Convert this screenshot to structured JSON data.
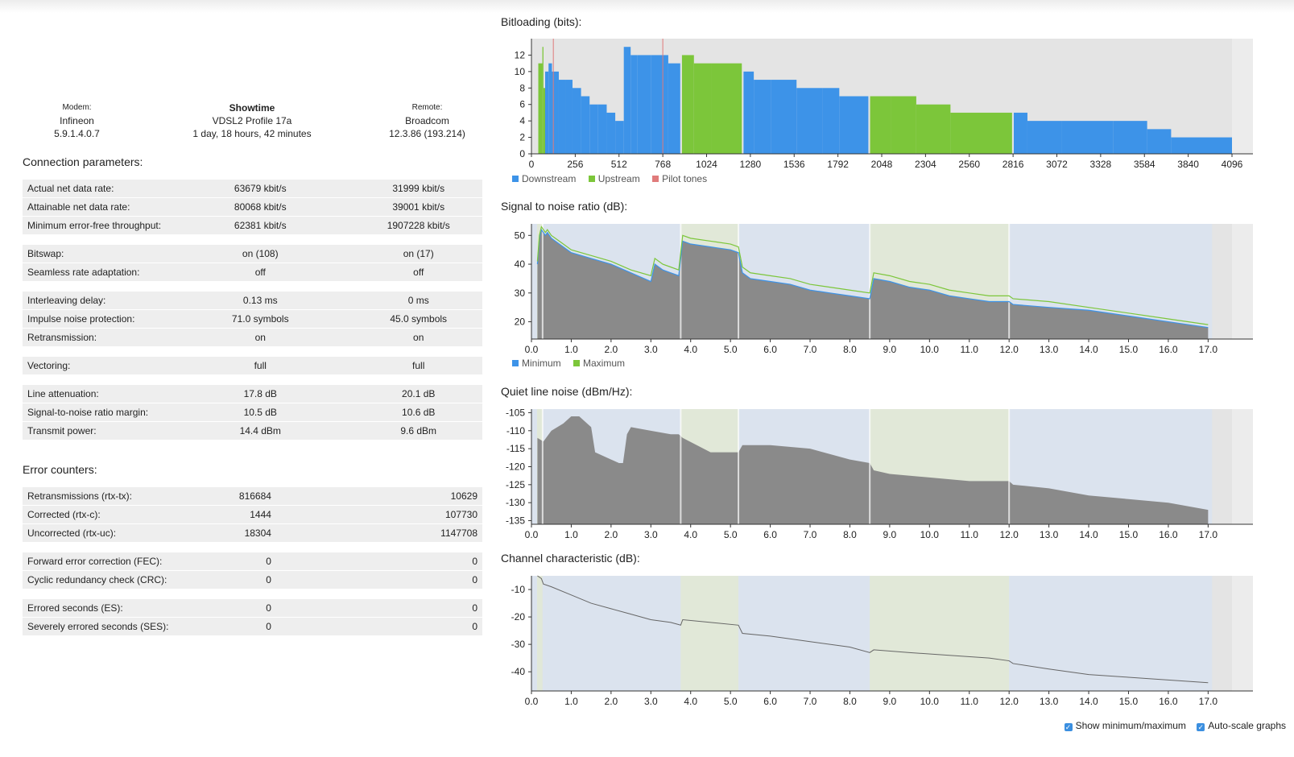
{
  "header": {
    "modem_label": "Modem:",
    "modem_vendor": "Infineon",
    "modem_version": "5.9.1.4.0.7",
    "status": "Showtime",
    "profile": "VDSL2 Profile 17a",
    "uptime": "1 day, 18 hours, 42 minutes",
    "remote_label": "Remote:",
    "remote_vendor": "Broadcom",
    "remote_version": "12.3.86 (193.214)"
  },
  "connection": {
    "title": "Connection parameters:",
    "groups": [
      [
        {
          "label": "Actual net data rate:",
          "down": "63679 kbit/s",
          "up": "31999 kbit/s"
        },
        {
          "label": "Attainable net data rate:",
          "down": "80068 kbit/s",
          "up": "39001 kbit/s"
        },
        {
          "label": "Minimum error-free throughput:",
          "down": "62381 kbit/s",
          "up": "1907228 kbit/s"
        }
      ],
      [
        {
          "label": "Bitswap:",
          "down": "on (108)",
          "up": "on (17)"
        },
        {
          "label": "Seamless rate adaptation:",
          "down": "off",
          "up": "off"
        }
      ],
      [
        {
          "label": "Interleaving delay:",
          "down": "0.13 ms",
          "up": "0 ms"
        },
        {
          "label": "Impulse noise protection:",
          "down": "71.0 symbols",
          "up": "45.0 symbols"
        },
        {
          "label": "Retransmission:",
          "down": "on",
          "up": "on"
        }
      ],
      [
        {
          "label": "Vectoring:",
          "down": "full",
          "up": "full"
        }
      ],
      [
        {
          "label": "Line attenuation:",
          "down": "17.8 dB",
          "up": "20.1 dB"
        },
        {
          "label": "Signal-to-noise ratio margin:",
          "down": "10.5 dB",
          "up": "10.6 dB"
        },
        {
          "label": "Transmit power:",
          "down": "14.4 dBm",
          "up": "9.6 dBm"
        }
      ]
    ]
  },
  "errors": {
    "title": "Error counters:",
    "groups": [
      [
        {
          "label": "Retransmissions (rtx-tx):",
          "down": "816684",
          "up": "10629"
        },
        {
          "label": "Corrected (rtx-c):",
          "down": "1444",
          "up": "107730"
        },
        {
          "label": "Uncorrected (rtx-uc):",
          "down": "18304",
          "up": "1147708"
        }
      ],
      [
        {
          "label": "Forward error correction (FEC):",
          "down": "0",
          "up": "0"
        },
        {
          "label": "Cyclic redundancy check (CRC):",
          "down": "0",
          "up": "0"
        }
      ],
      [
        {
          "label": "Errored seconds (ES):",
          "down": "0",
          "up": "0"
        },
        {
          "label": "Severely errored seconds (SES):",
          "down": "0",
          "up": "0"
        }
      ]
    ]
  },
  "colors": {
    "downstream": "#3d93e8",
    "upstream": "#7cc63a",
    "pilot": "#e07b7b",
    "gray_fill": "#8a8a8a",
    "bg_down": "#dbe3ee",
    "bg_up": "#e1e8d8"
  },
  "options": {
    "show_minmax": "Show minimum/maximum",
    "autoscale": "Auto-scale graphs"
  },
  "chart_data": [
    {
      "id": "bitloading",
      "type": "bar",
      "title": "Bitloading (bits):",
      "xlim": [
        0,
        4096
      ],
      "ylim": [
        0,
        14
      ],
      "x_ticks": [
        "0",
        "256",
        "512",
        "768",
        "1024",
        "1280",
        "1536",
        "1792",
        "2048",
        "2304",
        "2560",
        "2816",
        "3072",
        "3328",
        "3584",
        "3840",
        "4096"
      ],
      "y_ticks": [
        "0",
        "2",
        "4",
        "6",
        "8",
        "10",
        "12"
      ],
      "legend": [
        "Downstream",
        "Upstream",
        "Pilot tones"
      ],
      "pilot_tones": [
        128,
        768
      ],
      "series": [
        {
          "name": "Upstream",
          "segments": [
            [
              40,
              64,
              11
            ],
            [
              64,
              70,
              13
            ],
            [
              70,
              80,
              8
            ]
          ]
        },
        {
          "name": "Downstream",
          "segments": [
            [
              80,
              100,
              10
            ],
            [
              100,
              120,
              11
            ],
            [
              120,
              160,
              10
            ],
            [
              160,
              200,
              9
            ],
            [
              200,
              240,
              9
            ],
            [
              240,
              290,
              8
            ],
            [
              290,
              340,
              7
            ],
            [
              340,
              390,
              6
            ],
            [
              390,
              440,
              6
            ],
            [
              440,
              490,
              5
            ],
            [
              490,
              540,
              4
            ],
            [
              540,
              580,
              13
            ],
            [
              580,
              620,
              12
            ],
            [
              620,
              700,
              12
            ],
            [
              700,
              800,
              12
            ],
            [
              800,
              870,
              11
            ]
          ]
        },
        {
          "name": "Upstream",
          "segments": [
            [
              880,
              950,
              12
            ],
            [
              950,
              1050,
              11
            ],
            [
              1050,
              1230,
              11
            ]
          ]
        },
        {
          "name": "Downstream",
          "segments": [
            [
              1240,
              1300,
              10
            ],
            [
              1300,
              1400,
              9
            ],
            [
              1400,
              1550,
              9
            ],
            [
              1550,
              1700,
              8
            ],
            [
              1700,
              1800,
              8
            ],
            [
              1800,
              1970,
              7
            ]
          ]
        },
        {
          "name": "Upstream",
          "segments": [
            [
              1980,
              2100,
              7
            ],
            [
              2100,
              2250,
              7
            ],
            [
              2250,
              2450,
              6
            ],
            [
              2450,
              2810,
              5
            ]
          ]
        },
        {
          "name": "Downstream",
          "segments": [
            [
              2820,
              2900,
              5
            ],
            [
              2900,
              3100,
              4
            ],
            [
              3100,
              3400,
              4
            ],
            [
              3400,
              3600,
              4
            ],
            [
              3600,
              3740,
              3
            ],
            [
              3740,
              4096,
              2
            ]
          ]
        }
      ]
    },
    {
      "id": "snr",
      "type": "area",
      "title": "Signal to noise ratio (dB):",
      "xlim": [
        0,
        17.6
      ],
      "ylim": [
        14,
        54
      ],
      "x_ticks": [
        "0.0",
        "1.0",
        "2.0",
        "3.0",
        "4.0",
        "5.0",
        "6.0",
        "7.0",
        "8.0",
        "9.0",
        "10.0",
        "11.0",
        "12.0",
        "13.0",
        "14.0",
        "15.0",
        "16.0",
        "17.0"
      ],
      "y_ticks": [
        "20",
        "30",
        "40",
        "50"
      ],
      "legend": [
        "Minimum",
        "Maximum"
      ],
      "bands": [
        [
          0,
          0.14,
          "down"
        ],
        [
          0.14,
          0.28,
          "up"
        ],
        [
          0.28,
          3.75,
          "down"
        ],
        [
          3.75,
          5.2,
          "up"
        ],
        [
          5.2,
          8.5,
          "down"
        ],
        [
          8.5,
          12.0,
          "up"
        ],
        [
          12.0,
          17.1,
          "down"
        ]
      ],
      "series": [
        {
          "name": "Minimum",
          "x": [
            0.15,
            0.2,
            0.25,
            0.35,
            0.4,
            0.5,
            0.6,
            0.8,
            1.0,
            1.5,
            2.0,
            2.5,
            3.0,
            3.1,
            3.3,
            3.5,
            3.7,
            3.8,
            4.0,
            4.5,
            5.0,
            5.2,
            5.3,
            5.5,
            6.0,
            6.5,
            7.0,
            7.5,
            8.0,
            8.5,
            8.6,
            9.0,
            9.5,
            10.0,
            10.5,
            11.0,
            11.5,
            12.0,
            12.1,
            13.0,
            14.0,
            15.0,
            16.0,
            17.0
          ],
          "y": [
            40,
            49,
            52,
            50,
            51,
            49,
            48,
            46,
            44,
            42,
            40,
            37,
            34,
            40,
            38,
            37,
            36,
            48,
            47,
            46,
            45,
            44,
            37,
            35,
            34,
            33,
            31,
            30,
            29,
            28,
            35,
            34,
            32,
            31,
            29,
            28,
            27,
            27,
            26,
            25,
            24,
            22,
            20,
            18
          ]
        },
        {
          "name": "Maximum",
          "x": [
            0.15,
            0.2,
            0.25,
            0.35,
            0.4,
            0.5,
            0.6,
            0.8,
            1.0,
            1.5,
            2.0,
            2.5,
            3.0,
            3.1,
            3.3,
            3.5,
            3.7,
            3.8,
            4.0,
            4.5,
            5.0,
            5.2,
            5.3,
            5.5,
            6.0,
            6.5,
            7.0,
            7.5,
            8.0,
            8.5,
            8.6,
            9.0,
            9.5,
            10.0,
            10.5,
            11.0,
            11.5,
            12.0,
            12.1,
            13.0,
            14.0,
            15.0,
            16.0,
            17.0
          ],
          "y": [
            41,
            50,
            53,
            51,
            52,
            50,
            49,
            47,
            45,
            43,
            41,
            38,
            36,
            42,
            40,
            39,
            38,
            50,
            49,
            48,
            47,
            46,
            39,
            37,
            36,
            35,
            33,
            32,
            31,
            30,
            37,
            36,
            34,
            33,
            31,
            30,
            29,
            29,
            28,
            27,
            25,
            23,
            21,
            19
          ]
        }
      ]
    },
    {
      "id": "qln",
      "type": "area",
      "title": "Quiet line noise (dBm/Hz):",
      "xlim": [
        0,
        17.6
      ],
      "ylim": [
        -136,
        -104
      ],
      "x_ticks": [
        "0.0",
        "1.0",
        "2.0",
        "3.0",
        "4.0",
        "5.0",
        "6.0",
        "7.0",
        "8.0",
        "9.0",
        "10.0",
        "11.0",
        "12.0",
        "13.0",
        "14.0",
        "15.0",
        "16.0",
        "17.0"
      ],
      "y_ticks": [
        "-105",
        "-110",
        "-115",
        "-120",
        "-125",
        "-130",
        "-135"
      ],
      "bands": [
        [
          0,
          0.14,
          "down"
        ],
        [
          0.14,
          0.28,
          "up"
        ],
        [
          0.28,
          3.75,
          "down"
        ],
        [
          3.75,
          5.2,
          "up"
        ],
        [
          5.2,
          8.5,
          "down"
        ],
        [
          8.5,
          12.0,
          "up"
        ],
        [
          12.0,
          17.1,
          "down"
        ]
      ],
      "series": [
        {
          "name": "Noise",
          "x": [
            0.15,
            0.3,
            0.5,
            0.8,
            1.0,
            1.2,
            1.5,
            1.6,
            2.0,
            2.2,
            2.3,
            2.4,
            2.5,
            3.0,
            3.5,
            3.7,
            3.8,
            4.5,
            5.2,
            5.3,
            6.0,
            7.0,
            8.0,
            8.5,
            8.6,
            9.0,
            10.0,
            11.0,
            12.0,
            12.1,
            13.0,
            14.0,
            15.0,
            16.0,
            17.0
          ],
          "y": [
            -112,
            -113,
            -110,
            -108,
            -106,
            -106,
            -109,
            -116,
            -118,
            -119,
            -119,
            -111,
            -109,
            -110,
            -111,
            -111,
            -112,
            -116,
            -116,
            -114,
            -114,
            -115,
            -118,
            -119,
            -121,
            -122,
            -123,
            -124,
            -124,
            -125,
            -126,
            -128,
            -129,
            -130,
            -132
          ]
        }
      ]
    },
    {
      "id": "channel",
      "type": "line",
      "title": "Channel characteristic (dB):",
      "xlim": [
        0,
        17.6
      ],
      "ylim": [
        -47,
        -5
      ],
      "x_ticks": [
        "0.0",
        "1.0",
        "2.0",
        "3.0",
        "4.0",
        "5.0",
        "6.0",
        "7.0",
        "8.0",
        "9.0",
        "10.0",
        "11.0",
        "12.0",
        "13.0",
        "14.0",
        "15.0",
        "16.0",
        "17.0"
      ],
      "y_ticks": [
        "-10",
        "-20",
        "-30",
        "-40"
      ],
      "bands": [
        [
          0,
          0.14,
          "down"
        ],
        [
          0.14,
          0.28,
          "up"
        ],
        [
          0.28,
          3.75,
          "down"
        ],
        [
          3.75,
          5.2,
          "up"
        ],
        [
          5.2,
          8.5,
          "down"
        ],
        [
          8.5,
          12.0,
          "up"
        ],
        [
          12.0,
          17.1,
          "down"
        ]
      ],
      "series": [
        {
          "name": "Hlog",
          "x": [
            0.15,
            0.25,
            0.3,
            0.5,
            1.0,
            1.5,
            2.0,
            2.5,
            3.0,
            3.5,
            3.75,
            3.8,
            4.5,
            5.2,
            5.3,
            6.0,
            7.0,
            8.0,
            8.5,
            8.6,
            9.5,
            10.5,
            11.5,
            12.0,
            12.1,
            13.0,
            14.0,
            15.0,
            16.0,
            17.0
          ],
          "y": [
            -5,
            -6,
            -8,
            -9,
            -12,
            -15,
            -17,
            -19,
            -21,
            -22,
            -23,
            -21,
            -22,
            -23,
            -26,
            -27,
            -29,
            -31,
            -33,
            -32,
            -33,
            -34,
            -35,
            -36,
            -37,
            -39,
            -41,
            -42,
            -43,
            -44
          ]
        }
      ]
    }
  ]
}
